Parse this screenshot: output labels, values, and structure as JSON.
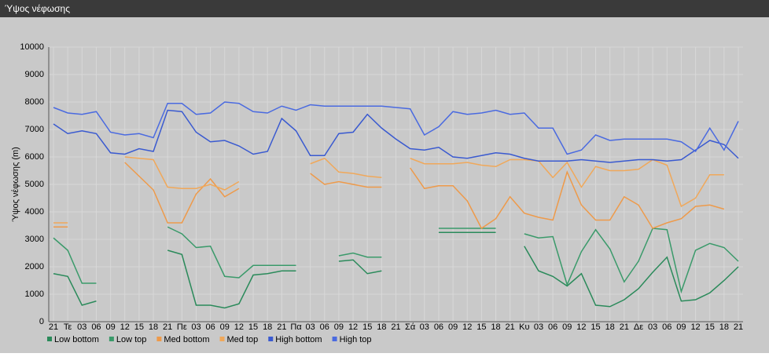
{
  "chart_data": {
    "type": "line",
    "title": "Ύψος νέφωσης",
    "y_label": "Ύψος νέφωσης (m)",
    "categories": [
      "21",
      "Τε",
      "03",
      "06",
      "09",
      "12",
      "15",
      "18",
      "21",
      "Πε",
      "03",
      "06",
      "09",
      "12",
      "15",
      "18",
      "21",
      "Πα",
      "03",
      "06",
      "09",
      "12",
      "15",
      "18",
      "21",
      "Σά",
      "03",
      "06",
      "09",
      "12",
      "15",
      "18",
      "21",
      "Κυ",
      "03",
      "06",
      "09",
      "12",
      "15",
      "18",
      "21",
      "Δε",
      "03",
      "06",
      "09",
      "12",
      "15",
      "18",
      "21"
    ],
    "ylim": [
      0,
      10000
    ],
    "yticks": [
      0,
      1000,
      2000,
      3000,
      4000,
      5000,
      6000,
      7000,
      8000,
      9000,
      10000
    ],
    "grid": true,
    "series": [
      {
        "name": "Low bottom",
        "color": "#2a8a5a",
        "values": [
          1750,
          1650,
          600,
          750,
          null,
          null,
          null,
          null,
          2600,
          2450,
          600,
          600,
          500,
          650,
          1700,
          1750,
          1850,
          1850,
          null,
          null,
          2200,
          2250,
          1750,
          1850,
          null,
          null,
          null,
          3250,
          3250,
          3250,
          3250,
          3250,
          null,
          2750,
          1850,
          1650,
          1300,
          1750,
          600,
          550,
          800,
          1200,
          1800,
          2350,
          750,
          800,
          1050,
          1500,
          2000
        ]
      },
      {
        "name": "Low top",
        "color": "#3a9a6a",
        "values": [
          3050,
          2600,
          1400,
          1400,
          null,
          null,
          null,
          null,
          3450,
          3200,
          2700,
          2750,
          1650,
          1600,
          2050,
          2050,
          2050,
          2050,
          null,
          null,
          2400,
          2500,
          2350,
          2350,
          null,
          null,
          null,
          3400,
          3400,
          3400,
          3400,
          3400,
          null,
          3200,
          3050,
          3100,
          1350,
          2550,
          3350,
          2650,
          1450,
          2200,
          3400,
          3350,
          1100,
          2600,
          2850,
          2700,
          2200
        ]
      },
      {
        "name": "Med bottom",
        "color": "#ee9a4a",
        "values": [
          3450,
          3450,
          null,
          null,
          null,
          5800,
          5300,
          4800,
          3600,
          3600,
          4650,
          5200,
          4550,
          4850,
          null,
          null,
          null,
          null,
          5400,
          5000,
          5100,
          5000,
          4900,
          4900,
          null,
          5600,
          4850,
          4950,
          4950,
          4400,
          3400,
          3750,
          4550,
          3950,
          3800,
          3700,
          5450,
          4250,
          3700,
          3700,
          4550,
          4250,
          3400,
          3600,
          3750,
          4200,
          4250,
          4100,
          null
        ]
      },
      {
        "name": "Med top",
        "color": "#f0a85a",
        "values": [
          3600,
          3600,
          null,
          null,
          null,
          6000,
          5950,
          5900,
          4900,
          4850,
          4850,
          5000,
          4800,
          5100,
          null,
          null,
          null,
          null,
          5750,
          5950,
          5450,
          5400,
          5300,
          5250,
          null,
          5950,
          5750,
          5750,
          5750,
          5800,
          5700,
          5650,
          5900,
          5900,
          5850,
          5250,
          5800,
          4900,
          5650,
          5500,
          5500,
          5550,
          5900,
          5700,
          4200,
          4500,
          5350,
          5350,
          null
        ]
      },
      {
        "name": "High bottom",
        "color": "#3a5ad0",
        "values": [
          7200,
          6850,
          6950,
          6850,
          6150,
          6100,
          6300,
          6200,
          7700,
          7650,
          6900,
          6550,
          6600,
          6400,
          6100,
          6200,
          7400,
          6950,
          6050,
          6050,
          6850,
          6900,
          7550,
          7050,
          6650,
          6300,
          6250,
          6350,
          6000,
          5950,
          6050,
          6150,
          6100,
          5950,
          5850,
          5850,
          5850,
          5900,
          5850,
          5800,
          5850,
          5900,
          5900,
          5850,
          5900,
          6250,
          6600,
          6450,
          5950
        ]
      },
      {
        "name": "High top",
        "color": "#4a6ae0",
        "values": [
          7800,
          7600,
          7550,
          7650,
          6900,
          6800,
          6850,
          6700,
          7950,
          7950,
          7550,
          7600,
          8000,
          7950,
          7650,
          7600,
          7850,
          7700,
          7900,
          7850,
          7850,
          7850,
          7850,
          7850,
          7800,
          7750,
          6800,
          7100,
          7650,
          7550,
          7600,
          7700,
          7550,
          7600,
          7050,
          7050,
          6100,
          6250,
          6800,
          6600,
          6650,
          6650,
          6650,
          6650,
          6550,
          6200,
          7050,
          6250,
          7300
        ]
      }
    ]
  }
}
